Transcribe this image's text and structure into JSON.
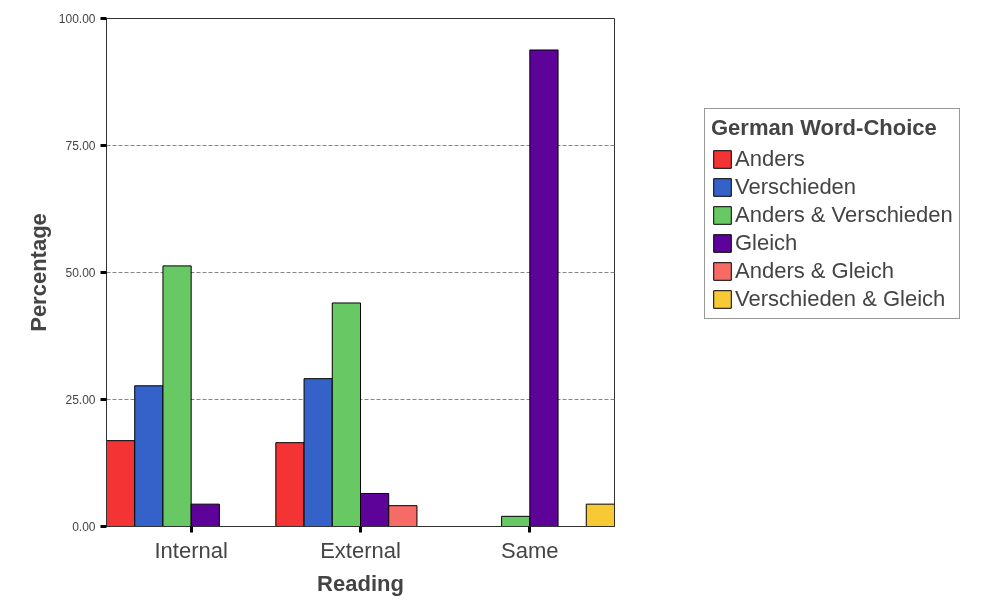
{
  "chart_data": {
    "type": "bar",
    "xlabel": "Reading",
    "ylabel": "Percentage",
    "legend_title": "German Word-Choice",
    "categories": [
      "Internal",
      "External",
      "Same"
    ],
    "series": [
      {
        "name": "Anders",
        "color": "#f43434",
        "values": [
          16.9,
          16.5,
          null
        ]
      },
      {
        "name": "Verschieden",
        "color": "#3562c9",
        "values": [
          27.7,
          29.1,
          null
        ]
      },
      {
        "name": "Anders & Verschieden",
        "color": "#68c964",
        "values": [
          51.3,
          44.0,
          2.0
        ]
      },
      {
        "name": "Gleich",
        "color": "#5e0399",
        "values": [
          4.4,
          6.5,
          93.8
        ]
      },
      {
        "name": "Anders & Gleich",
        "color": "#f66b65",
        "values": [
          null,
          4.1,
          null
        ]
      },
      {
        "name": "Verschieden & Gleich",
        "color": "#f7c934",
        "values": [
          null,
          null,
          4.4
        ]
      }
    ],
    "ylim": [
      0,
      100
    ],
    "yticks": [
      {
        "value": 0,
        "label": "0.00"
      },
      {
        "value": 25,
        "label": "25.00"
      },
      {
        "value": 50,
        "label": "50.00"
      },
      {
        "value": 75,
        "label": "75.00"
      },
      {
        "value": 100,
        "label": "100.00"
      }
    ],
    "grid": "y",
    "legend": "top right"
  }
}
